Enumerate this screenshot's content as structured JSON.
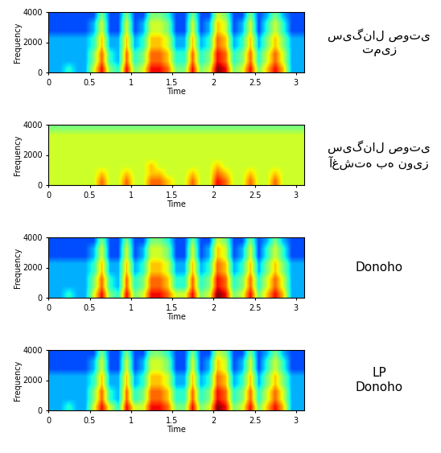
{
  "chart_data": [
    {
      "type": "heatmap",
      "annotation": "سیگنال صوتی\nتمیز",
      "xlabel": "Time",
      "ylabel": "Frequency",
      "xlim": [
        0,
        3.1
      ],
      "ylim": [
        0,
        4000
      ],
      "xticks": [
        0,
        0.5,
        1,
        1.5,
        2,
        2.5,
        3
      ],
      "yticks": [
        0,
        2000,
        4000
      ],
      "cell_range": [
        0,
        10
      ],
      "cells": [
        [
          3,
          3,
          4,
          3,
          3,
          6,
          9,
          5,
          4,
          9,
          5,
          6,
          9,
          9,
          8,
          5,
          5,
          9,
          5,
          6,
          10,
          9,
          5,
          6,
          9,
          5,
          7,
          9,
          7,
          3,
          3
        ],
        [
          3,
          3,
          3,
          3,
          3,
          5,
          8,
          4,
          3,
          8,
          4,
          5,
          8,
          8,
          7,
          4,
          4,
          8,
          4,
          5,
          9,
          8,
          4,
          5,
          8,
          4,
          6,
          8,
          6,
          3,
          3
        ],
        [
          3,
          3,
          3,
          3,
          3,
          5,
          8,
          4,
          3,
          8,
          4,
          5,
          8,
          8,
          7,
          4,
          4,
          8,
          4,
          5,
          9,
          8,
          4,
          5,
          8,
          4,
          6,
          8,
          6,
          3,
          3
        ],
        [
          3,
          3,
          3,
          3,
          3,
          4,
          7,
          3,
          3,
          7,
          3,
          4,
          7,
          7,
          6,
          3,
          3,
          7,
          3,
          4,
          8,
          7,
          3,
          4,
          7,
          3,
          5,
          7,
          5,
          3,
          3
        ],
        [
          3,
          3,
          3,
          3,
          3,
          4,
          7,
          3,
          3,
          7,
          3,
          4,
          7,
          7,
          6,
          3,
          3,
          7,
          3,
          4,
          8,
          7,
          3,
          4,
          7,
          3,
          5,
          7,
          5,
          3,
          3
        ],
        [
          2,
          2,
          2,
          2,
          2,
          3,
          6,
          2,
          2,
          6,
          2,
          3,
          6,
          6,
          5,
          2,
          2,
          6,
          2,
          3,
          7,
          6,
          2,
          3,
          6,
          2,
          4,
          6,
          4,
          2,
          2
        ],
        [
          2,
          2,
          2,
          2,
          2,
          3,
          6,
          2,
          2,
          6,
          2,
          3,
          6,
          6,
          5,
          2,
          2,
          6,
          2,
          3,
          7,
          6,
          2,
          3,
          6,
          2,
          4,
          6,
          4,
          2,
          2
        ],
        [
          2,
          2,
          2,
          2,
          2,
          2,
          5,
          2,
          2,
          5,
          2,
          2,
          5,
          5,
          4,
          2,
          2,
          5,
          2,
          2,
          6,
          5,
          2,
          2,
          5,
          2,
          3,
          5,
          3,
          2,
          2
        ]
      ]
    },
    {
      "type": "heatmap",
      "annotation": "سیگنال صوتی\nآغشته به نویز",
      "xlabel": "Time",
      "ylabel": "Frequency",
      "xlim": [
        0,
        3.1
      ],
      "ylim": [
        0,
        4000
      ],
      "xticks": [
        0,
        0.5,
        1,
        1.5,
        2,
        2.5,
        3
      ],
      "yticks": [
        0,
        2000,
        4000
      ],
      "cell_range": [
        0,
        10
      ],
      "cells": [
        [
          6,
          6,
          6,
          6,
          6,
          6,
          8,
          6,
          6,
          8,
          6,
          6,
          8,
          8,
          7,
          6,
          6,
          8,
          6,
          6,
          9,
          8,
          6,
          6,
          8,
          6,
          6,
          8,
          6,
          6,
          6
        ],
        [
          6,
          6,
          6,
          6,
          6,
          6,
          7,
          6,
          6,
          7,
          6,
          6,
          7,
          7,
          6,
          6,
          6,
          7,
          6,
          6,
          8,
          7,
          6,
          6,
          7,
          6,
          6,
          7,
          6,
          6,
          6
        ],
        [
          6,
          6,
          6,
          6,
          6,
          6,
          6,
          6,
          6,
          6,
          6,
          6,
          7,
          6,
          6,
          6,
          6,
          6,
          6,
          6,
          7,
          6,
          6,
          6,
          6,
          6,
          6,
          6,
          6,
          6,
          6
        ],
        [
          6,
          6,
          6,
          6,
          6,
          6,
          6,
          6,
          6,
          6,
          6,
          6,
          6,
          6,
          6,
          6,
          6,
          6,
          6,
          6,
          6,
          6,
          6,
          6,
          6,
          6,
          6,
          6,
          6,
          6,
          6
        ],
        [
          6,
          6,
          6,
          6,
          6,
          6,
          6,
          6,
          6,
          6,
          6,
          6,
          6,
          6,
          6,
          6,
          6,
          6,
          6,
          6,
          6,
          6,
          6,
          6,
          6,
          6,
          6,
          6,
          6,
          6,
          6
        ],
        [
          6,
          6,
          6,
          6,
          6,
          6,
          6,
          6,
          6,
          6,
          6,
          6,
          6,
          6,
          6,
          6,
          6,
          6,
          6,
          6,
          6,
          6,
          6,
          6,
          6,
          6,
          6,
          6,
          6,
          6,
          6
        ],
        [
          6,
          6,
          6,
          6,
          6,
          6,
          6,
          6,
          6,
          6,
          6,
          6,
          6,
          6,
          6,
          6,
          6,
          6,
          6,
          6,
          6,
          6,
          6,
          6,
          6,
          6,
          6,
          6,
          6,
          6,
          6
        ],
        [
          5,
          5,
          5,
          5,
          5,
          5,
          5,
          5,
          5,
          5,
          5,
          5,
          5,
          5,
          5,
          5,
          5,
          5,
          5,
          5,
          5,
          5,
          5,
          5,
          5,
          5,
          5,
          5,
          5,
          5,
          5
        ]
      ]
    },
    {
      "type": "heatmap",
      "annotation": "Donoho",
      "xlabel": "Time",
      "ylabel": "Frequency",
      "xlim": [
        0,
        3.1
      ],
      "ylim": [
        0,
        4000
      ],
      "xticks": [
        0,
        0.5,
        1,
        1.5,
        2,
        2.5,
        3
      ],
      "yticks": [
        0,
        2000,
        4000
      ],
      "cell_range": [
        0,
        10
      ],
      "cells": [
        [
          3,
          3,
          4,
          3,
          3,
          6,
          9,
          5,
          4,
          9,
          5,
          6,
          9,
          9,
          8,
          6,
          6,
          9,
          5,
          6,
          10,
          9,
          5,
          6,
          9,
          5,
          7,
          9,
          7,
          3,
          3
        ],
        [
          3,
          3,
          3,
          3,
          3,
          5,
          8,
          4,
          3,
          8,
          4,
          5,
          8,
          8,
          7,
          4,
          4,
          8,
          4,
          5,
          9,
          8,
          4,
          5,
          8,
          4,
          6,
          8,
          6,
          3,
          3
        ],
        [
          3,
          3,
          3,
          3,
          3,
          5,
          8,
          4,
          3,
          8,
          4,
          5,
          8,
          8,
          7,
          4,
          4,
          8,
          4,
          5,
          9,
          8,
          4,
          5,
          8,
          4,
          6,
          8,
          6,
          3,
          3
        ],
        [
          3,
          3,
          3,
          3,
          3,
          4,
          7,
          3,
          3,
          7,
          3,
          4,
          7,
          7,
          6,
          3,
          3,
          7,
          3,
          4,
          8,
          7,
          3,
          4,
          7,
          3,
          5,
          7,
          5,
          3,
          3
        ],
        [
          3,
          3,
          3,
          3,
          3,
          4,
          7,
          3,
          3,
          7,
          3,
          4,
          7,
          7,
          6,
          3,
          3,
          7,
          3,
          4,
          8,
          7,
          3,
          4,
          7,
          3,
          5,
          7,
          5,
          3,
          3
        ],
        [
          2,
          2,
          2,
          2,
          2,
          3,
          6,
          2,
          2,
          6,
          2,
          3,
          6,
          6,
          5,
          2,
          2,
          6,
          2,
          3,
          7,
          6,
          2,
          3,
          6,
          2,
          4,
          6,
          4,
          2,
          2
        ],
        [
          2,
          2,
          2,
          2,
          2,
          3,
          6,
          2,
          2,
          6,
          2,
          3,
          6,
          6,
          5,
          2,
          2,
          6,
          2,
          3,
          7,
          6,
          2,
          3,
          6,
          2,
          4,
          6,
          4,
          2,
          2
        ],
        [
          2,
          2,
          2,
          2,
          2,
          2,
          5,
          2,
          2,
          5,
          2,
          2,
          5,
          5,
          4,
          2,
          2,
          5,
          2,
          2,
          6,
          5,
          2,
          2,
          5,
          2,
          3,
          5,
          3,
          2,
          2
        ]
      ]
    },
    {
      "type": "heatmap",
      "annotation": "LP\nDonoho",
      "xlabel": "Time",
      "ylabel": "Frequency",
      "xlim": [
        0,
        3.1
      ],
      "ylim": [
        0,
        4000
      ],
      "xticks": [
        0,
        0.5,
        1,
        1.5,
        2,
        2.5,
        3
      ],
      "yticks": [
        0,
        2000,
        4000
      ],
      "cell_range": [
        0,
        10
      ],
      "cells": [
        [
          3,
          3,
          4,
          3,
          3,
          6,
          9,
          6,
          4,
          9,
          6,
          6,
          9,
          9,
          8,
          5,
          5,
          9,
          5,
          6,
          10,
          9,
          5,
          6,
          9,
          5,
          7,
          9,
          7,
          3,
          3
        ],
        [
          3,
          3,
          3,
          3,
          3,
          5,
          8,
          4,
          3,
          8,
          4,
          5,
          8,
          8,
          7,
          4,
          4,
          8,
          4,
          5,
          9,
          8,
          4,
          5,
          8,
          4,
          6,
          8,
          6,
          3,
          3
        ],
        [
          3,
          3,
          3,
          3,
          3,
          5,
          8,
          4,
          3,
          8,
          4,
          5,
          8,
          8,
          7,
          4,
          4,
          8,
          4,
          5,
          9,
          8,
          4,
          5,
          8,
          4,
          6,
          8,
          6,
          3,
          3
        ],
        [
          3,
          3,
          3,
          3,
          3,
          4,
          7,
          3,
          3,
          7,
          3,
          4,
          7,
          7,
          6,
          3,
          3,
          7,
          3,
          4,
          8,
          7,
          3,
          4,
          7,
          3,
          5,
          7,
          5,
          3,
          3
        ],
        [
          3,
          3,
          3,
          3,
          3,
          4,
          7,
          3,
          3,
          7,
          3,
          4,
          7,
          7,
          6,
          3,
          3,
          7,
          3,
          4,
          8,
          7,
          3,
          4,
          7,
          3,
          5,
          7,
          5,
          3,
          3
        ],
        [
          2,
          2,
          2,
          2,
          2,
          3,
          6,
          2,
          2,
          6,
          2,
          3,
          6,
          6,
          5,
          2,
          2,
          6,
          2,
          3,
          7,
          6,
          2,
          3,
          6,
          2,
          4,
          6,
          4,
          2,
          2
        ],
        [
          2,
          2,
          2,
          2,
          2,
          3,
          6,
          2,
          2,
          6,
          2,
          3,
          6,
          6,
          5,
          2,
          2,
          6,
          2,
          3,
          7,
          6,
          2,
          3,
          6,
          2,
          4,
          6,
          4,
          2,
          2
        ],
        [
          2,
          2,
          2,
          2,
          2,
          2,
          5,
          2,
          2,
          5,
          2,
          2,
          5,
          5,
          4,
          2,
          2,
          5,
          2,
          2,
          6,
          5,
          2,
          2,
          5,
          2,
          3,
          5,
          3,
          2,
          2
        ]
      ]
    }
  ]
}
